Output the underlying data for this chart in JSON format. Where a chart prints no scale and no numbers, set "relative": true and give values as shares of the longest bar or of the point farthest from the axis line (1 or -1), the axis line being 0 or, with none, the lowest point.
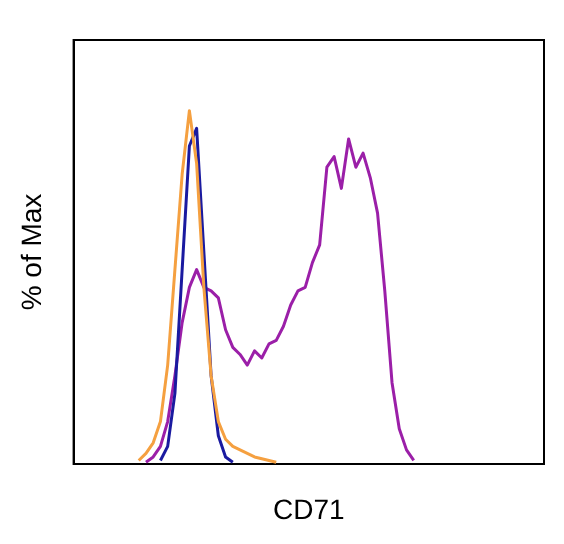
{
  "chart_data": {
    "type": "line",
    "relative": true,
    "xlabel": "CD71",
    "ylabel": "% of Max",
    "legend": false,
    "grid": false,
    "marker": "none",
    "categories": [
      null,
      null,
      null,
      null,
      null,
      null,
      null,
      null,
      null,
      null,
      null,
      null,
      null,
      null,
      null,
      null,
      null,
      null,
      null,
      null,
      null,
      null,
      null,
      null,
      null,
      null,
      null,
      null,
      null,
      null,
      null,
      null,
      null,
      null,
      null,
      null,
      null,
      null,
      null,
      null,
      null,
      null,
      null,
      null,
      null,
      null,
      null,
      null,
      null,
      null,
      null,
      null,
      null,
      null,
      null,
      null,
      null,
      null,
      null,
      null,
      null,
      null,
      null,
      null,
      null,
      null
    ],
    "series": [
      {
        "color": "#f5a040",
        "values": [
          null,
          null,
          null,
          null,
          null,
          null,
          null,
          null,
          null,
          0.01,
          0.03,
          0.06,
          0.12,
          0.28,
          0.55,
          0.82,
          1,
          0.85,
          0.5,
          0.25,
          0.12,
          0.07,
          0.05,
          0.04,
          0.03,
          0.02,
          0.015,
          0.01,
          0.005,
          null,
          null,
          null,
          null,
          null,
          null,
          null,
          null,
          null,
          null,
          null,
          null,
          null,
          null,
          null,
          null,
          null,
          null,
          null,
          null,
          null,
          null,
          null,
          null,
          null,
          null,
          null,
          null,
          null,
          null,
          null,
          null,
          null,
          null,
          null,
          null,
          null
        ]
      },
      {
        "color": "#1a1aa0",
        "values": [
          null,
          null,
          null,
          null,
          null,
          null,
          null,
          null,
          null,
          null,
          null,
          null,
          0.01,
          0.05,
          0.2,
          0.55,
          0.9,
          0.95,
          0.6,
          0.25,
          0.08,
          0.02,
          0.005,
          null,
          null,
          null,
          null,
          null,
          null,
          null,
          null,
          null,
          null,
          null,
          null,
          null,
          null,
          null,
          null,
          null,
          null,
          null,
          null,
          null,
          null,
          null,
          null,
          null,
          null,
          null,
          null,
          null,
          null,
          null,
          null,
          null,
          null,
          null,
          null,
          null,
          null,
          null,
          null,
          null,
          null,
          null
        ]
      },
      {
        "color": "#9b1fa8",
        "values": [
          null,
          null,
          null,
          null,
          null,
          null,
          null,
          null,
          null,
          null,
          0.005,
          0.02,
          0.05,
          0.12,
          0.25,
          0.4,
          0.5,
          0.55,
          0.5,
          0.49,
          0.47,
          0.38,
          0.33,
          0.31,
          0.28,
          0.32,
          0.3,
          0.34,
          0.35,
          0.39,
          0.45,
          0.49,
          0.5,
          0.57,
          0.62,
          0.84,
          0.87,
          0.78,
          0.92,
          0.84,
          0.88,
          0.81,
          0.71,
          0.49,
          0.23,
          0.1,
          0.04,
          0.01,
          null,
          null,
          null,
          null,
          null,
          null,
          null,
          null,
          null,
          null,
          null,
          null,
          null,
          null,
          null,
          null,
          null,
          null
        ]
      }
    ]
  }
}
